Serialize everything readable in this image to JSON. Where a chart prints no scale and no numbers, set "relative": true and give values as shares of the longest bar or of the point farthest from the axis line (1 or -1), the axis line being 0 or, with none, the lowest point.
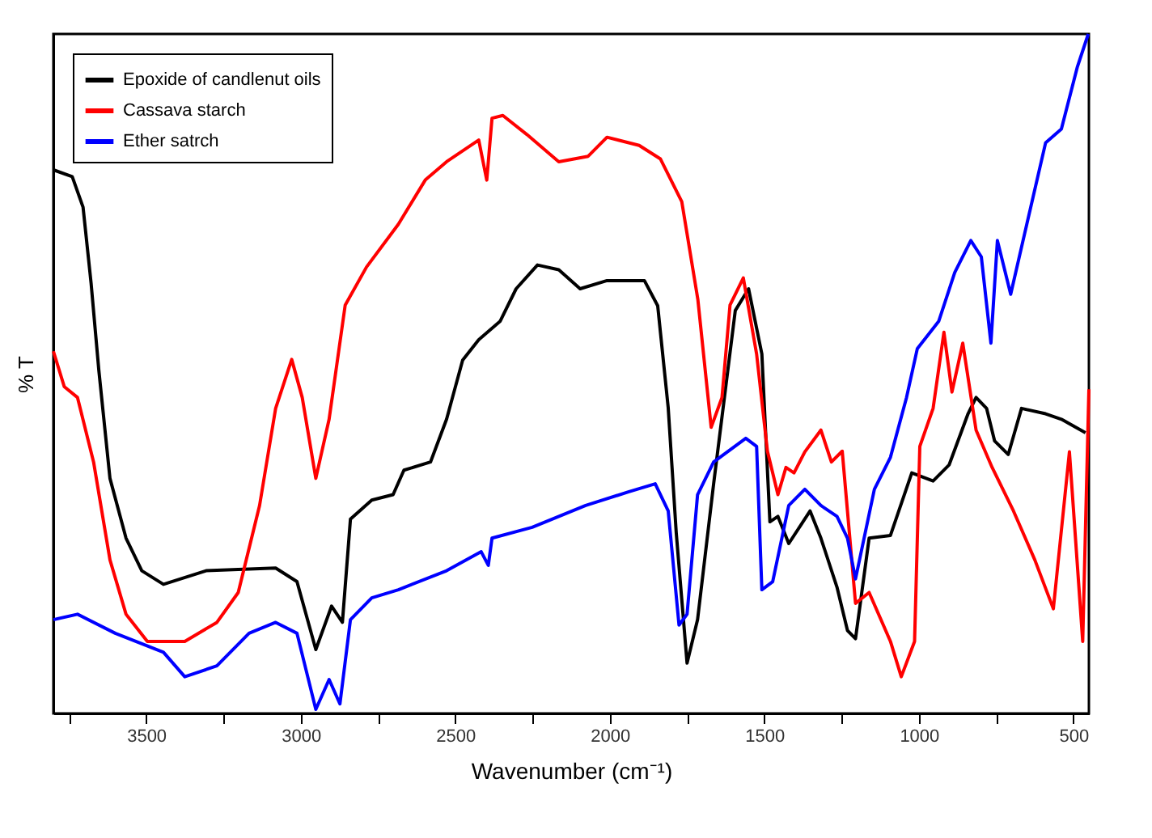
{
  "chart_data": {
    "type": "line",
    "relative": true,
    "xlabel": "Wavenumber (cm⁻¹)",
    "ylabel": "% T",
    "xlim": [
      3800,
      450
    ],
    "xticks": [
      {
        "value": 3750,
        "label": null
      },
      3500,
      {
        "value": 3250,
        "label": null
      },
      3000,
      {
        "value": 2750,
        "label": null
      },
      2500,
      {
        "value": 2250,
        "label": null
      },
      2000,
      {
        "value": 1750,
        "label": null
      },
      1500,
      {
        "value": 1250,
        "label": null
      },
      1000,
      {
        "value": 750,
        "label": null
      },
      500
    ],
    "grid": false,
    "legend": "top left",
    "line_style": "solid",
    "marker": "none",
    "series": [
      {
        "name": "Epoxide of candlenut oils",
        "color": "#000000",
        "x": [
          3800,
          3739,
          3704,
          3678,
          3653,
          3617,
          3565,
          3514,
          3444,
          3306,
          3081,
          3012,
          2951,
          2900,
          2865,
          2839,
          2770,
          2701,
          2666,
          2580,
          2528,
          2476,
          2424,
          2355,
          2303,
          2234,
          2165,
          2096,
          2009,
          1888,
          1845,
          1811,
          1785,
          1750,
          1716,
          1664,
          1594,
          1551,
          1508,
          1482,
          1456,
          1421,
          1352,
          1317,
          1265,
          1231,
          1205,
          1161,
          1092,
          1023,
          954,
          902,
          841,
          815,
          781,
          755,
          711,
          668,
          590,
          539,
          461
        ],
        "values": [
          0.8,
          0.79,
          0.745,
          0.633,
          0.505,
          0.346,
          0.258,
          0.21,
          0.19,
          0.21,
          0.214,
          0.194,
          0.094,
          0.158,
          0.134,
          0.286,
          0.314,
          0.322,
          0.358,
          0.37,
          0.433,
          0.52,
          0.55,
          0.577,
          0.625,
          0.66,
          0.653,
          0.625,
          0.637,
          0.637,
          0.6,
          0.45,
          0.266,
          0.074,
          0.138,
          0.338,
          0.593,
          0.625,
          0.529,
          0.282,
          0.29,
          0.25,
          0.298,
          0.258,
          0.186,
          0.122,
          0.11,
          0.258,
          0.262,
          0.354,
          0.342,
          0.366,
          0.441,
          0.465,
          0.449,
          0.401,
          0.381,
          0.449,
          0.441,
          0.433,
          0.413
        ]
      },
      {
        "name": "Cassava starch",
        "color": "#ff0000",
        "x": [
          3800,
          3765,
          3722,
          3670,
          3617,
          3565,
          3496,
          3375,
          3271,
          3202,
          3133,
          3081,
          3029,
          2995,
          2951,
          2908,
          2856,
          2787,
          2684,
          2597,
          2528,
          2424,
          2398,
          2381,
          2346,
          2268,
          2165,
          2070,
          2009,
          1905,
          1836,
          1767,
          1715,
          1672,
          1637,
          1611,
          1568,
          1525,
          1490,
          1456,
          1430,
          1404,
          1369,
          1317,
          1283,
          1248,
          1205,
          1161,
          1092,
          1057,
          1014,
          997,
          954,
          919,
          893,
          858,
          815,
          763,
          694,
          625,
          565,
          513,
          470,
          450
        ],
        "values": [
          0.533,
          0.481,
          0.465,
          0.37,
          0.226,
          0.146,
          0.106,
          0.106,
          0.134,
          0.178,
          0.306,
          0.449,
          0.521,
          0.465,
          0.346,
          0.433,
          0.601,
          0.657,
          0.72,
          0.785,
          0.812,
          0.844,
          0.785,
          0.876,
          0.88,
          0.852,
          0.812,
          0.82,
          0.848,
          0.836,
          0.816,
          0.753,
          0.609,
          0.421,
          0.465,
          0.601,
          0.641,
          0.529,
          0.386,
          0.322,
          0.362,
          0.354,
          0.385,
          0.417,
          0.37,
          0.386,
          0.162,
          0.178,
          0.106,
          0.054,
          0.106,
          0.393,
          0.449,
          0.561,
          0.473,
          0.545,
          0.417,
          0.362,
          0.298,
          0.226,
          0.154,
          0.385,
          0.106,
          0.477
        ]
      },
      {
        "name": "Ether satrch",
        "color": "#0000ff",
        "x": [
          3800,
          3722,
          3600,
          3444,
          3375,
          3271,
          3167,
          3081,
          3012,
          2951,
          2908,
          2873,
          2839,
          2770,
          2684,
          2528,
          2416,
          2393,
          2381,
          2251,
          2078,
          1940,
          1853,
          1811,
          1776,
          1750,
          1716,
          1664,
          1560,
          1525,
          1508,
          1473,
          1421,
          1369,
          1317,
          1265,
          1231,
          1205,
          1144,
          1092,
          1040,
          1005,
          936,
          884,
          832,
          798,
          767,
          746,
          703,
          659,
          590,
          539,
          487,
          452
        ],
        "values": [
          0.138,
          0.146,
          0.118,
          0.09,
          0.054,
          0.07,
          0.118,
          0.134,
          0.118,
          0.006,
          0.05,
          0.014,
          0.138,
          0.17,
          0.182,
          0.21,
          0.238,
          0.218,
          0.258,
          0.274,
          0.306,
          0.326,
          0.338,
          0.298,
          0.13,
          0.146,
          0.322,
          0.37,
          0.405,
          0.393,
          0.182,
          0.194,
          0.306,
          0.33,
          0.306,
          0.29,
          0.258,
          0.198,
          0.33,
          0.377,
          0.465,
          0.537,
          0.577,
          0.649,
          0.696,
          0.672,
          0.545,
          0.696,
          0.617,
          0.704,
          0.84,
          0.86,
          0.952,
          1
        ]
      }
    ]
  }
}
